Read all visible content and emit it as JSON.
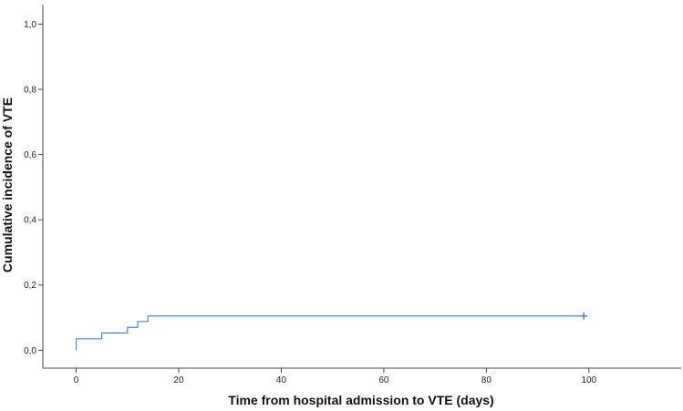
{
  "chart_data": {
    "type": "line",
    "title": "",
    "xlabel": "Time from hospital admission to VTE  (days)",
    "ylabel": "Cumulative incidence of VTE",
    "xlim": [
      -6.5,
      118
    ],
    "ylim": [
      -0.055,
      1.06
    ],
    "x_ticks": [
      0,
      20,
      40,
      60,
      80,
      100
    ],
    "y_ticks": [
      0.0,
      0.2,
      0.4,
      0.6,
      0.8,
      1.0
    ],
    "x_tick_labels": [
      "0",
      "20",
      "40",
      "60",
      "80",
      "100"
    ],
    "y_tick_labels": [
      "0,0",
      "0,2",
      "0,4",
      "0,6",
      "0,8",
      "1,0"
    ],
    "grid": false,
    "legend": "none",
    "line_color": "#4a86cf",
    "series": [
      {
        "step": true,
        "x": [
          0,
          0,
          5,
          10,
          12,
          14,
          99
        ],
        "y": [
          0.0,
          0.035,
          0.053,
          0.07,
          0.088,
          0.105,
          0.105
        ]
      }
    ],
    "censored": [
      {
        "x": 99,
        "y": 0.105
      }
    ]
  }
}
